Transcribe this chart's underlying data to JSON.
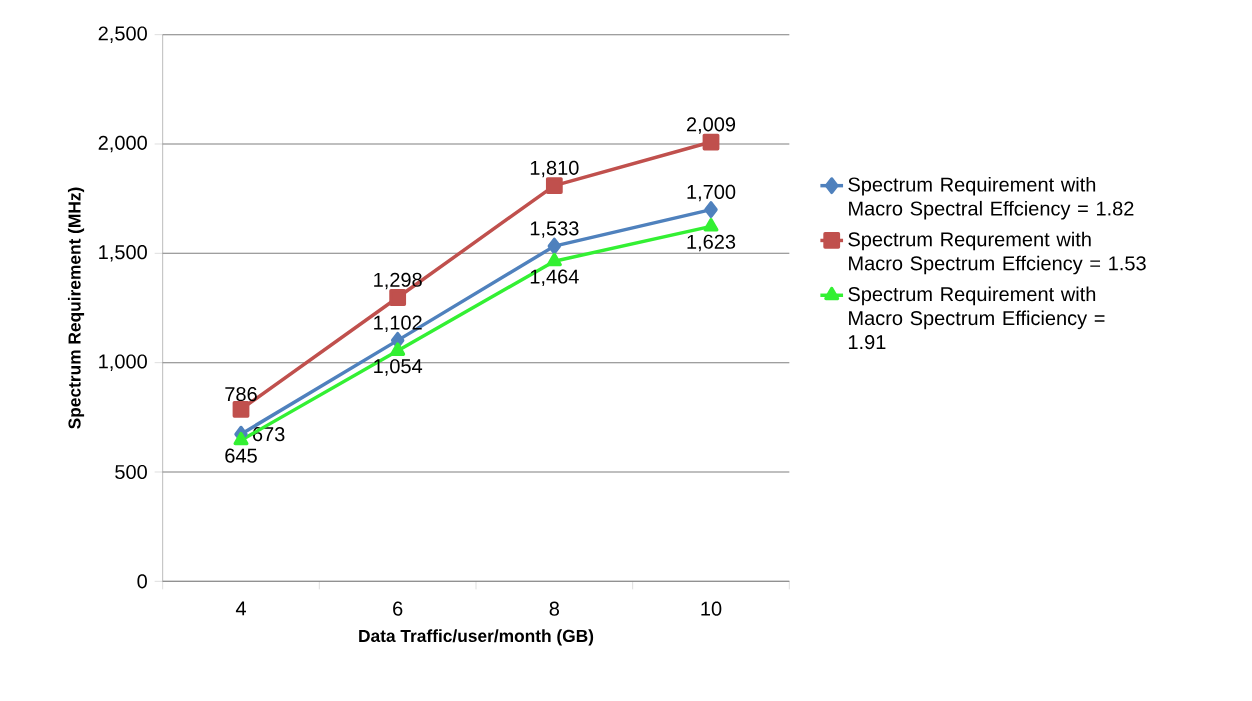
{
  "chart_data": {
    "type": "line",
    "xlabel": "Data Traffic/user/month (GB)",
    "ylabel": "Spectrum Requirement (MHz)",
    "categories": [
      "4",
      "6",
      "8",
      "10"
    ],
    "series": [
      {
        "name": "Spectrum Requirement with Macro Spectral Effciency = 1.82",
        "color": "#4f81bd",
        "marker": "diamond",
        "values": [
          673,
          1102,
          1533,
          1700
        ],
        "value_labels": [
          "673",
          "1,102",
          "1,533",
          "1,700"
        ]
      },
      {
        "name": "Spectrum Requrement with Macro Spectrum Effciency = 1.53",
        "color": "#c0504d",
        "marker": "square",
        "values": [
          786,
          1298,
          1810,
          2009
        ],
        "value_labels": [
          "786",
          "1,298",
          "1,810",
          "2,009"
        ]
      },
      {
        "name": "Spectrum Requirement with Macro Spectrum Efficiency = 1.91",
        "color": "#33f033",
        "marker": "triangle",
        "values": [
          645,
          1054,
          1464,
          1623
        ],
        "value_labels": [
          "645",
          "1,054",
          "1,464",
          "1,623"
        ]
      }
    ],
    "ylim": [
      0,
      2500
    ],
    "yticks": [
      {
        "value": 0,
        "label": "0"
      },
      {
        "value": 500,
        "label": "500"
      },
      {
        "value": 1000,
        "label": "1,000"
      },
      {
        "value": 1500,
        "label": "1,500"
      },
      {
        "value": 2000,
        "label": "2,000"
      },
      {
        "value": 2500,
        "label": "2,500"
      }
    ],
    "grid": "y",
    "legend": "right",
    "line_style": "solid"
  }
}
